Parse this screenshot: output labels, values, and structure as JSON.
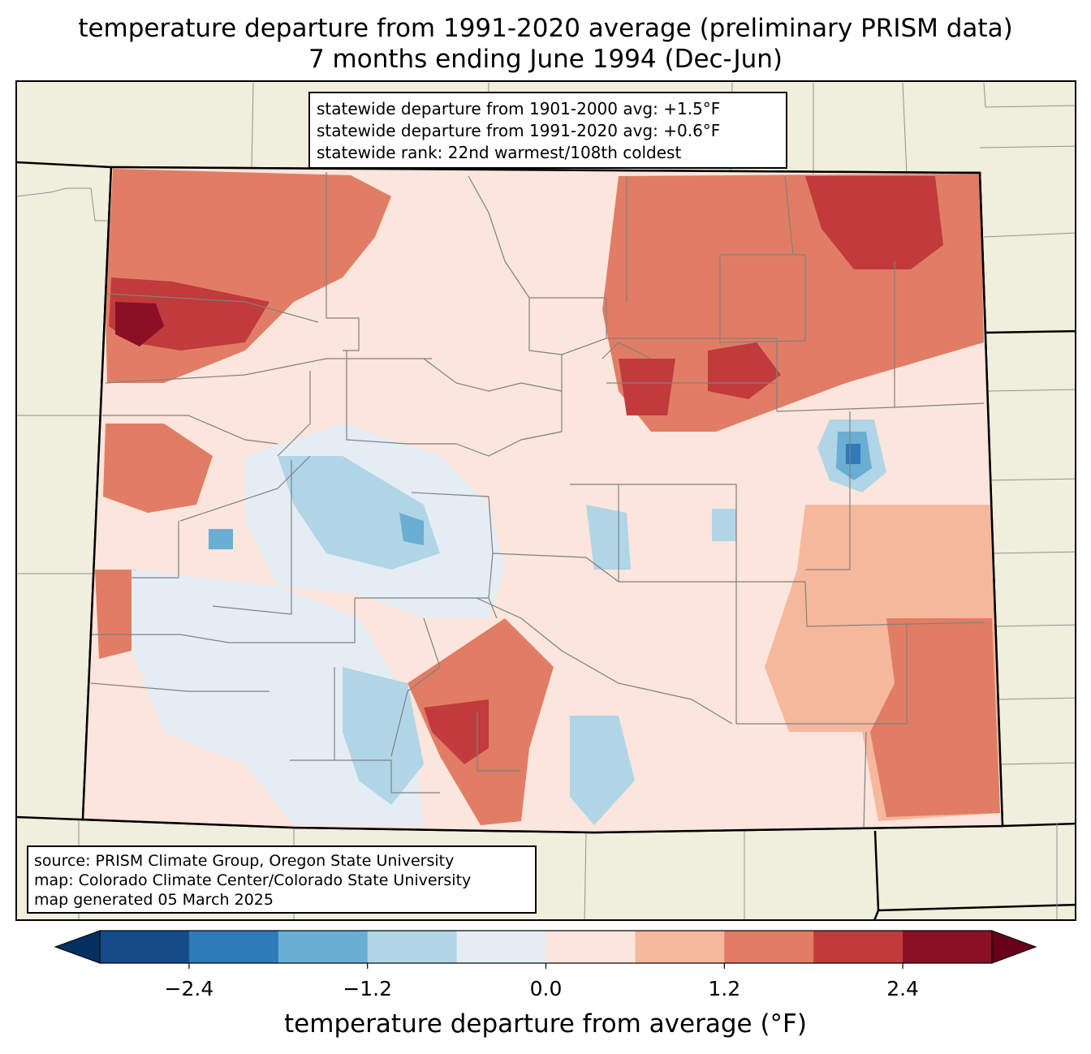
{
  "title": {
    "line1": "temperature departure from 1991-2020 average (preliminary PRISM data)",
    "line2": "7 months ending June 1994 (Dec-Jun)"
  },
  "stats": {
    "line1": "statewide departure from 1901-2000 avg: +1.5°F",
    "line2": "statewide departure from 1991-2020 avg: +0.6°F",
    "line3": "statewide rank: 22nd warmest/108th coldest"
  },
  "source": {
    "line1": "source: PRISM Climate Group, Oregon State University",
    "line2": "map: Colorado Climate Center/Colorado State University",
    "line3": "map generated 05 March 2025"
  },
  "colorbar": {
    "label": "temperature departure from average (°F)",
    "bins": [
      -3.0,
      -2.4,
      -1.8,
      -1.2,
      -0.6,
      0.0,
      0.6,
      1.2,
      1.8,
      2.4,
      3.0
    ],
    "ticks": [
      "−2.4",
      "−1.2",
      "0.0",
      "1.2",
      "2.4"
    ],
    "tick_values": [
      -2.4,
      -1.2,
      0.0,
      1.2,
      2.4
    ],
    "colors": [
      "#164b87",
      "#2f7ab8",
      "#6aaed3",
      "#b0d5e7",
      "#e4edf4",
      "#fbe5dc",
      "#f6b89d",
      "#e17d65",
      "#c13a3c",
      "#8b0f25"
    ],
    "under_color": "#073062",
    "over_color": "#670018"
  },
  "map": {
    "land_color": "#f0eedc",
    "border_color": "#000000",
    "county_color": "#808080"
  }
}
